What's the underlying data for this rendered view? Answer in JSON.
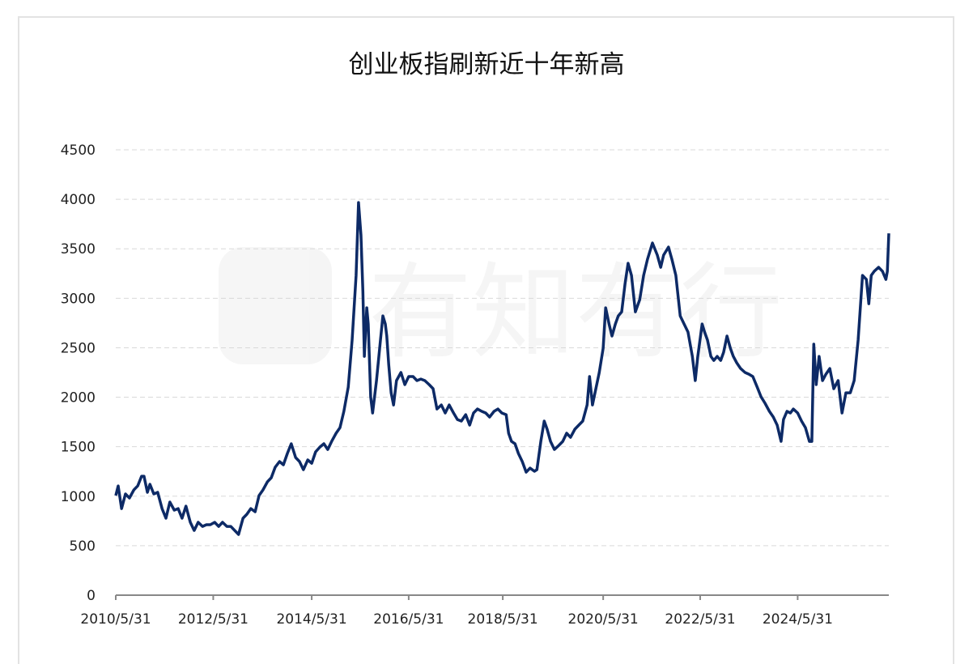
{
  "watermark": "有知有行",
  "colors": {
    "line": "#0d2a66",
    "grid": "#d9d9d9",
    "axis": "#888888"
  },
  "chart_data": {
    "type": "line",
    "title": "创业板指刷新近十年新高",
    "xlabel": "",
    "ylabel": "",
    "ylim": [
      0,
      4500
    ],
    "xlim": [
      2010.41,
      2026.27
    ],
    "yticks": [
      0,
      500,
      1000,
      1500,
      2000,
      2500,
      3000,
      3500,
      4000,
      4500
    ],
    "xticks": [
      {
        "label": "2010/5/31",
        "x": 2010.41
      },
      {
        "label": "2012/5/31",
        "x": 2012.41
      },
      {
        "label": "2014/5/31",
        "x": 2014.43
      },
      {
        "label": "2016/5/31",
        "x": 2016.42
      },
      {
        "label": "2018/5/31",
        "x": 2018.35
      },
      {
        "label": "2020/5/31",
        "x": 2020.41
      },
      {
        "label": "2022/5/31",
        "x": 2022.4
      },
      {
        "label": "2024/5/31",
        "x": 2024.4
      }
    ],
    "grid": true,
    "legend": "none",
    "series": [
      {
        "name": "创业板指",
        "points": [
          [
            2010.41,
            1006
          ],
          [
            2010.46,
            1104
          ],
          [
            2010.53,
            875
          ],
          [
            2010.61,
            1023
          ],
          [
            2010.69,
            982
          ],
          [
            2010.78,
            1063
          ],
          [
            2010.86,
            1104
          ],
          [
            2010.94,
            1202
          ],
          [
            2010.99,
            1202
          ],
          [
            2011.06,
            1039
          ],
          [
            2011.11,
            1121
          ],
          [
            2011.19,
            1023
          ],
          [
            2011.27,
            1039
          ],
          [
            2011.36,
            875
          ],
          [
            2011.44,
            777
          ],
          [
            2011.52,
            941
          ],
          [
            2011.61,
            859
          ],
          [
            2011.69,
            875
          ],
          [
            2011.77,
            777
          ],
          [
            2011.85,
            900
          ],
          [
            2011.94,
            736
          ],
          [
            2012.02,
            654
          ],
          [
            2012.1,
            736
          ],
          [
            2012.19,
            695
          ],
          [
            2012.27,
            712
          ],
          [
            2012.35,
            712
          ],
          [
            2012.44,
            736
          ],
          [
            2012.52,
            695
          ],
          [
            2012.6,
            736
          ],
          [
            2012.69,
            695
          ],
          [
            2012.77,
            695
          ],
          [
            2012.85,
            654
          ],
          [
            2012.93,
            614
          ],
          [
            2013.02,
            777
          ],
          [
            2013.1,
            818
          ],
          [
            2013.18,
            875
          ],
          [
            2013.27,
            843
          ],
          [
            2013.35,
            1006
          ],
          [
            2013.43,
            1063
          ],
          [
            2013.52,
            1145
          ],
          [
            2013.6,
            1186
          ],
          [
            2013.68,
            1292
          ],
          [
            2013.77,
            1350
          ],
          [
            2013.85,
            1317
          ],
          [
            2013.93,
            1432
          ],
          [
            2014.01,
            1530
          ],
          [
            2014.1,
            1391
          ],
          [
            2014.18,
            1350
          ],
          [
            2014.26,
            1268
          ],
          [
            2014.35,
            1366
          ],
          [
            2014.43,
            1333
          ],
          [
            2014.51,
            1448
          ],
          [
            2014.6,
            1497
          ],
          [
            2014.68,
            1530
          ],
          [
            2014.76,
            1472
          ],
          [
            2014.84,
            1554
          ],
          [
            2014.93,
            1636
          ],
          [
            2015.01,
            1693
          ],
          [
            2015.09,
            1857
          ],
          [
            2015.18,
            2102
          ],
          [
            2015.26,
            2577
          ],
          [
            2015.34,
            3231
          ],
          [
            2015.39,
            3967
          ],
          [
            2015.44,
            3640
          ],
          [
            2015.48,
            3068
          ],
          [
            2015.51,
            2413
          ],
          [
            2015.56,
            2904
          ],
          [
            2015.59,
            2740
          ],
          [
            2015.64,
            2004
          ],
          [
            2015.68,
            1841
          ],
          [
            2015.76,
            2168
          ],
          [
            2015.84,
            2577
          ],
          [
            2015.89,
            2822
          ],
          [
            2015.94,
            2740
          ],
          [
            2015.97,
            2618
          ],
          [
            2016.01,
            2331
          ],
          [
            2016.06,
            2045
          ],
          [
            2016.11,
            1922
          ],
          [
            2016.17,
            2168
          ],
          [
            2016.26,
            2250
          ],
          [
            2016.34,
            2127
          ],
          [
            2016.42,
            2209
          ],
          [
            2016.51,
            2209
          ],
          [
            2016.59,
            2168
          ],
          [
            2016.67,
            2184
          ],
          [
            2016.75,
            2168
          ],
          [
            2016.84,
            2127
          ],
          [
            2016.92,
            2086
          ],
          [
            2017.0,
            1881
          ],
          [
            2017.09,
            1922
          ],
          [
            2017.17,
            1841
          ],
          [
            2017.25,
            1922
          ],
          [
            2017.34,
            1841
          ],
          [
            2017.42,
            1775
          ],
          [
            2017.5,
            1759
          ],
          [
            2017.59,
            1824
          ],
          [
            2017.67,
            1718
          ],
          [
            2017.75,
            1841
          ],
          [
            2017.83,
            1881
          ],
          [
            2017.92,
            1857
          ],
          [
            2018.0,
            1841
          ],
          [
            2018.08,
            1800
          ],
          [
            2018.17,
            1857
          ],
          [
            2018.25,
            1881
          ],
          [
            2018.33,
            1841
          ],
          [
            2018.42,
            1824
          ],
          [
            2018.47,
            1636
          ],
          [
            2018.53,
            1554
          ],
          [
            2018.6,
            1530
          ],
          [
            2018.67,
            1432
          ],
          [
            2018.75,
            1350
          ],
          [
            2018.83,
            1243
          ],
          [
            2018.91,
            1284
          ],
          [
            2019.0,
            1252
          ],
          [
            2019.05,
            1268
          ],
          [
            2019.13,
            1554
          ],
          [
            2019.2,
            1759
          ],
          [
            2019.26,
            1677
          ],
          [
            2019.33,
            1554
          ],
          [
            2019.41,
            1472
          ],
          [
            2019.5,
            1513
          ],
          [
            2019.58,
            1554
          ],
          [
            2019.66,
            1636
          ],
          [
            2019.74,
            1595
          ],
          [
            2019.83,
            1677
          ],
          [
            2019.91,
            1718
          ],
          [
            2019.99,
            1759
          ],
          [
            2020.08,
            1922
          ],
          [
            2020.13,
            2209
          ],
          [
            2020.19,
            1922
          ],
          [
            2020.26,
            2086
          ],
          [
            2020.33,
            2250
          ],
          [
            2020.41,
            2495
          ],
          [
            2020.46,
            2904
          ],
          [
            2020.53,
            2740
          ],
          [
            2020.59,
            2618
          ],
          [
            2020.66,
            2740
          ],
          [
            2020.72,
            2822
          ],
          [
            2020.79,
            2863
          ],
          [
            2020.86,
            3149
          ],
          [
            2020.92,
            3354
          ],
          [
            2020.99,
            3231
          ],
          [
            2021.07,
            2863
          ],
          [
            2021.16,
            2986
          ],
          [
            2021.24,
            3231
          ],
          [
            2021.32,
            3395
          ],
          [
            2021.42,
            3558
          ],
          [
            2021.52,
            3436
          ],
          [
            2021.59,
            3313
          ],
          [
            2021.65,
            3436
          ],
          [
            2021.75,
            3517
          ],
          [
            2021.82,
            3395
          ],
          [
            2021.9,
            3231
          ],
          [
            2021.99,
            2822
          ],
          [
            2022.07,
            2740
          ],
          [
            2022.15,
            2659
          ],
          [
            2022.24,
            2413
          ],
          [
            2022.3,
            2168
          ],
          [
            2022.35,
            2413
          ],
          [
            2022.44,
            2740
          ],
          [
            2022.49,
            2659
          ],
          [
            2022.55,
            2577
          ],
          [
            2022.62,
            2413
          ],
          [
            2022.68,
            2372
          ],
          [
            2022.75,
            2413
          ],
          [
            2022.82,
            2372
          ],
          [
            2022.88,
            2454
          ],
          [
            2022.95,
            2618
          ],
          [
            2023.02,
            2495
          ],
          [
            2023.08,
            2413
          ],
          [
            2023.15,
            2348
          ],
          [
            2023.23,
            2290
          ],
          [
            2023.32,
            2250
          ],
          [
            2023.4,
            2233
          ],
          [
            2023.48,
            2209
          ],
          [
            2023.57,
            2102
          ],
          [
            2023.65,
            2004
          ],
          [
            2023.73,
            1939
          ],
          [
            2023.82,
            1857
          ],
          [
            2023.9,
            1800
          ],
          [
            2023.98,
            1718
          ],
          [
            2024.06,
            1554
          ],
          [
            2024.11,
            1775
          ],
          [
            2024.18,
            1857
          ],
          [
            2024.25,
            1841
          ],
          [
            2024.31,
            1881
          ],
          [
            2024.4,
            1841
          ],
          [
            2024.48,
            1759
          ],
          [
            2024.56,
            1693
          ],
          [
            2024.64,
            1554
          ],
          [
            2024.69,
            1554
          ],
          [
            2024.73,
            2536
          ],
          [
            2024.78,
            2127
          ],
          [
            2024.84,
            2413
          ],
          [
            2024.91,
            2168
          ],
          [
            2024.98,
            2233
          ],
          [
            2025.06,
            2290
          ],
          [
            2025.14,
            2086
          ],
          [
            2025.23,
            2168
          ],
          [
            2025.31,
            1841
          ],
          [
            2025.39,
            2045
          ],
          [
            2025.48,
            2045
          ],
          [
            2025.56,
            2168
          ],
          [
            2025.64,
            2577
          ],
          [
            2025.73,
            3231
          ],
          [
            2025.81,
            3190
          ],
          [
            2025.86,
            2945
          ],
          [
            2025.91,
            3231
          ],
          [
            2025.97,
            3272
          ],
          [
            2026.06,
            3313
          ],
          [
            2026.14,
            3272
          ],
          [
            2026.21,
            3190
          ],
          [
            2026.24,
            3272
          ],
          [
            2026.27,
            3656
          ]
        ]
      }
    ]
  }
}
